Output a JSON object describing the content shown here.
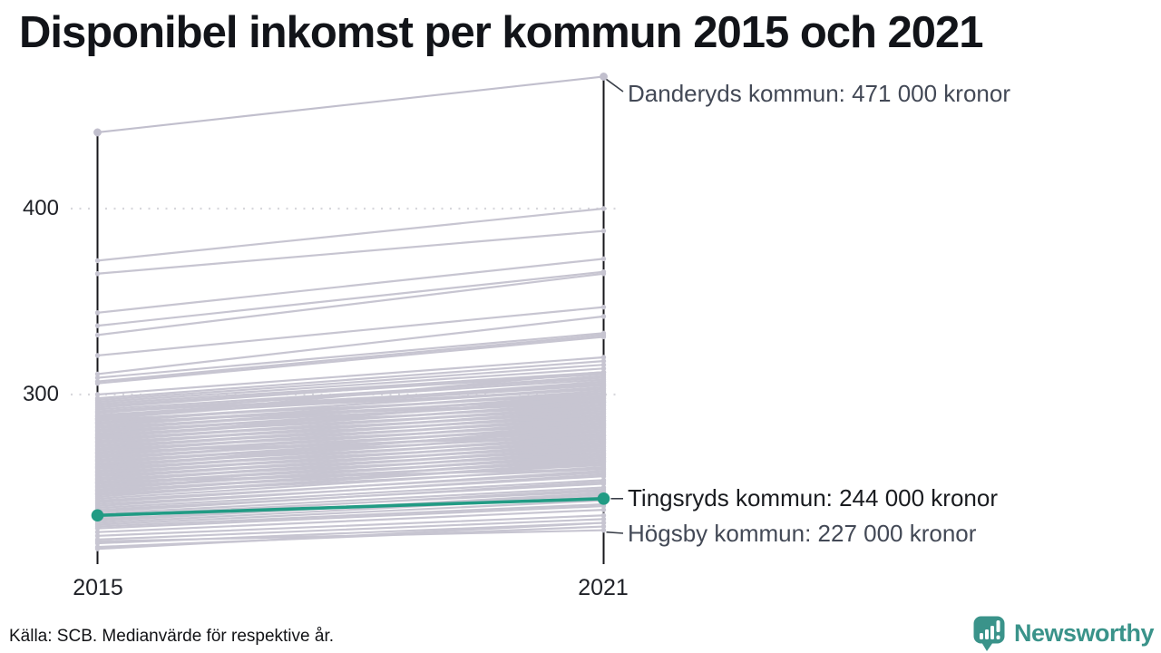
{
  "title": "Disponibel inkomst per kommun 2015 och 2021",
  "footer": {
    "source": "Källa: SCB. Medianvärde för respektive år.",
    "brand": "Newsworthy"
  },
  "colors": {
    "line_gray": "#c7c5d1",
    "endpoint_gray": "#c1bfcd",
    "highlight_teal": "#219b84",
    "axis": "#17171b",
    "grid": "#d7d7dc",
    "leader": "#3a3f49",
    "brand_teal": "#3a938a"
  },
  "chart_data": {
    "type": "line",
    "subtype": "slope-chart",
    "title": "Disponibel inkomst per kommun 2015 och 2021",
    "x_categories": [
      "2015",
      "2021"
    ],
    "y_ticks": [
      400,
      300
    ],
    "y_tick_labels": [
      "400",
      "300"
    ],
    "ylim": [
      210,
      480
    ],
    "grid": "dotted-horizontal",
    "legend": "none",
    "highlighted": {
      "danderyd": {
        "label": "Danderyds kommun: 471 000 kronor",
        "values": [
          441,
          471
        ],
        "style": "gray-emphasis"
      },
      "tingsryd": {
        "label": "Tingsryds kommun: 244 000 kronor",
        "values": [
          235,
          244
        ],
        "style": "teal"
      },
      "hogsby": {
        "label": "Högsby kommun: 227 000 kronor",
        "values": [
          221,
          227
        ],
        "style": "gray"
      }
    },
    "background_lines_estimated": [
      [
        372,
        400
      ],
      [
        365,
        388
      ],
      [
        344,
        373
      ],
      [
        337,
        366
      ],
      [
        332,
        365
      ],
      [
        321,
        347
      ],
      [
        311,
        342
      ],
      [
        309,
        333
      ],
      [
        307,
        332
      ],
      [
        306,
        331
      ],
      [
        300,
        320
      ],
      [
        298,
        318
      ],
      [
        297,
        316
      ],
      [
        296,
        314
      ],
      [
        295,
        312
      ],
      [
        294,
        311
      ],
      [
        293,
        312
      ],
      [
        292,
        309
      ],
      [
        291,
        308
      ],
      [
        290,
        310
      ],
      [
        290.5,
        305
      ],
      [
        289,
        306
      ],
      [
        288,
        305
      ],
      [
        288.5,
        303
      ],
      [
        287,
        307
      ],
      [
        287,
        312
      ],
      [
        286,
        303
      ],
      [
        286.5,
        300
      ],
      [
        285,
        304
      ],
      [
        285,
        296
      ],
      [
        284,
        301
      ],
      [
        284.5,
        298
      ],
      [
        283,
        302
      ],
      [
        282,
        299
      ],
      [
        282.5,
        296
      ],
      [
        281,
        300
      ],
      [
        280,
        297
      ],
      [
        280.5,
        294
      ],
      [
        279,
        298
      ],
      [
        278,
        295
      ],
      [
        278.5,
        292
      ],
      [
        277,
        296
      ],
      [
        277,
        299
      ],
      [
        276,
        293
      ],
      [
        276.5,
        290
      ],
      [
        275,
        294
      ],
      [
        274,
        291
      ],
      [
        274.5,
        288
      ],
      [
        273,
        292
      ],
      [
        272,
        289
      ],
      [
        272.5,
        286
      ],
      [
        271,
        290
      ],
      [
        270,
        287
      ],
      [
        270.5,
        284
      ],
      [
        269,
        288
      ],
      [
        269,
        278
      ],
      [
        268,
        285
      ],
      [
        268.5,
        282
      ],
      [
        267,
        286
      ],
      [
        266,
        283
      ],
      [
        266.5,
        280
      ],
      [
        265,
        284
      ],
      [
        264,
        281
      ],
      [
        264.5,
        278
      ],
      [
        263,
        282
      ],
      [
        262,
        279
      ],
      [
        262.5,
        276
      ],
      [
        261,
        280
      ],
      [
        261,
        283
      ],
      [
        260,
        277
      ],
      [
        260.5,
        274
      ],
      [
        259,
        278
      ],
      [
        258,
        275
      ],
      [
        258.5,
        272
      ],
      [
        257,
        276
      ],
      [
        256,
        273
      ],
      [
        256.5,
        270
      ],
      [
        255,
        274
      ],
      [
        254,
        271
      ],
      [
        254.5,
        268
      ],
      [
        253,
        272
      ],
      [
        253,
        260
      ],
      [
        252,
        269
      ],
      [
        252.5,
        266
      ],
      [
        251,
        270
      ],
      [
        250,
        267
      ],
      [
        250.5,
        264
      ],
      [
        249,
        268
      ],
      [
        248,
        265
      ],
      [
        248.5,
        262
      ],
      [
        247,
        266
      ],
      [
        246,
        263
      ],
      [
        246.5,
        260
      ],
      [
        245,
        264
      ],
      [
        244,
        261
      ],
      [
        243,
        258
      ],
      [
        242,
        259
      ],
      [
        241,
        256
      ],
      [
        240,
        257
      ],
      [
        239,
        254
      ],
      [
        238,
        252
      ],
      [
        237,
        253
      ],
      [
        236,
        250
      ],
      [
        235,
        248
      ],
      [
        234,
        249
      ],
      [
        233,
        246
      ],
      [
        232,
        247
      ],
      [
        231,
        245
      ],
      [
        230,
        243
      ],
      [
        229,
        241
      ],
      [
        228,
        240
      ],
      [
        226,
        238
      ],
      [
        224,
        235
      ],
      [
        222,
        233
      ],
      [
        220,
        231
      ],
      [
        218,
        229
      ],
      [
        217,
        231
      ]
    ]
  }
}
